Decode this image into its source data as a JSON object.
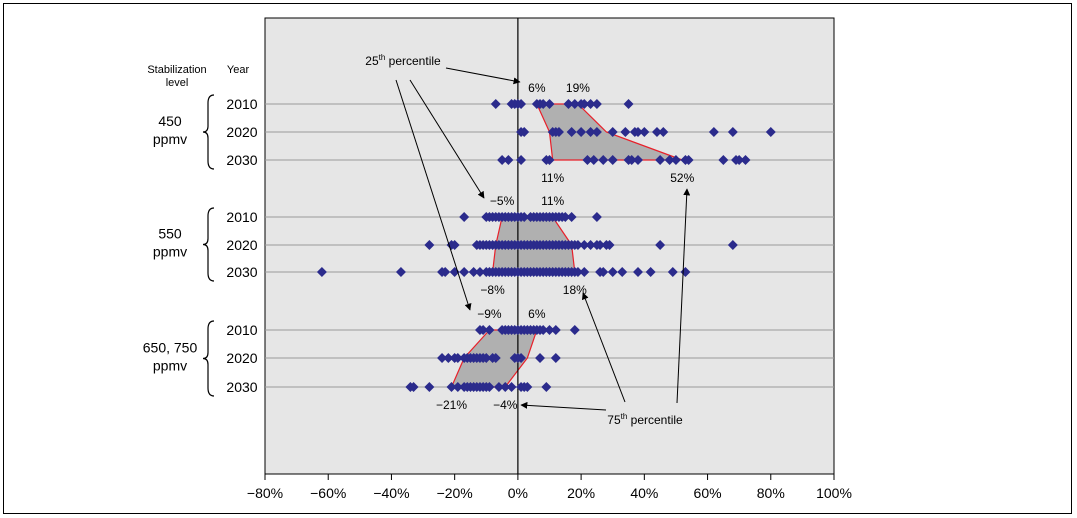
{
  "chart_data": {
    "type": "scatter",
    "title": "",
    "xlabel": "",
    "ylabel": "",
    "xlim": [
      -80,
      100
    ],
    "x_ticks": [
      "−80%",
      "−60%",
      "−40%",
      "−20%",
      "0%",
      "20%",
      "40%",
      "60%",
      "80%",
      "100%"
    ],
    "x_tick_values": [
      -80,
      -60,
      -40,
      -20,
      0,
      20,
      40,
      60,
      80,
      100
    ],
    "grid": true,
    "header_stabilization": "Stabilization level",
    "header_year": "Year",
    "groups": [
      {
        "label_line1": "450",
        "label_line2": "ppmv",
        "rows": [
          {
            "year": "2010",
            "points": [
              -7,
              -2,
              -1,
              0,
              1,
              6,
              7,
              8,
              10,
              16,
              18,
              20,
              21,
              23,
              25,
              35
            ],
            "p25": 6,
            "p75": 19
          },
          {
            "year": "2020",
            "points": [
              1,
              2,
              11,
              12,
              13,
              17,
              20,
              23,
              25,
              30,
              34,
              37,
              38,
              40,
              44,
              46,
              62,
              68,
              80
            ],
            "p25": 10,
            "p75": 28
          },
          {
            "year": "2030",
            "points": [
              -5,
              -3,
              1,
              9,
              10,
              22,
              24,
              27,
              30,
              35,
              36,
              38,
              45,
              48,
              50,
              53,
              54,
              65,
              69,
              70,
              72
            ],
            "p25": 11,
            "p75": 52
          }
        ]
      },
      {
        "label_line1": "550",
        "label_line2": "ppmv",
        "rows": [
          {
            "year": "2010",
            "points": [
              -17,
              -10,
              -9,
              -8,
              -7,
              -6,
              -5,
              -4,
              -3,
              -2,
              -1,
              0,
              1,
              2,
              4,
              5,
              6,
              7,
              8,
              9,
              10,
              11,
              12,
              13,
              14,
              15,
              17,
              25
            ],
            "p25": -5,
            "p75": 11
          },
          {
            "year": "2020",
            "points": [
              -28,
              -21,
              -20,
              -13,
              -12,
              -11,
              -10,
              -9,
              -8,
              -7,
              -6,
              -5,
              -4,
              -3,
              -2,
              -1,
              0,
              1,
              2,
              3,
              4,
              5,
              6,
              7,
              8,
              9,
              10,
              11,
              12,
              13,
              14,
              15,
              16,
              17,
              18,
              19,
              21,
              23,
              25,
              26,
              28,
              29,
              45,
              68
            ],
            "p25": -7,
            "p75": 17
          },
          {
            "year": "2030",
            "points": [
              -62,
              -37,
              -24,
              -23,
              -20,
              -17,
              -14,
              -12,
              -10,
              -9,
              -8,
              -7,
              -6,
              -5,
              -4,
              -3,
              -2,
              -1,
              0,
              1,
              2,
              3,
              4,
              5,
              6,
              7,
              8,
              9,
              10,
              11,
              12,
              13,
              14,
              15,
              16,
              17,
              18,
              19,
              21,
              26,
              27,
              30,
              33,
              38,
              42,
              49,
              53
            ],
            "p25": -8,
            "p75": 18
          }
        ]
      },
      {
        "label_line1": "650, 750",
        "label_line2": "ppmv",
        "rows": [
          {
            "year": "2010",
            "points": [
              -12,
              -11,
              -9,
              -5,
              -4,
              -3,
              -2,
              -1,
              0,
              1,
              2,
              3,
              4,
              5,
              6,
              7,
              8,
              10,
              12,
              18
            ],
            "p25": -9,
            "p75": 6
          },
          {
            "year": "2020",
            "points": [
              -24,
              -22,
              -20,
              -19,
              -17,
              -16,
              -15,
              -14,
              -13,
              -12,
              -11,
              -10,
              -8,
              -7,
              -1,
              0,
              1,
              7,
              12
            ],
            "p25": -17,
            "p75": 3
          },
          {
            "year": "2030",
            "points": [
              -34,
              -33,
              -28,
              -21,
              -19,
              -17,
              -16,
              -15,
              -14,
              -13,
              -12,
              -11,
              -10,
              -9,
              -6,
              -4,
              -2,
              1,
              2,
              3,
              9
            ],
            "p25": -21,
            "p75": -4
          }
        ]
      }
    ],
    "annotations": {
      "p25_label_pre": "25",
      "p25_label_sup": "th",
      "p25_label_post": " percentile",
      "p75_label_pre": "75",
      "p75_label_sup": "th",
      "p75_label_post": " percentile",
      "value_labels": [
        {
          "text": "6%",
          "group": 0,
          "row": 0,
          "pos": "above",
          "x": 6
        },
        {
          "text": "19%",
          "group": 0,
          "row": 0,
          "pos": "above",
          "x": 19
        },
        {
          "text": "11%",
          "group": 0,
          "row": 2,
          "pos": "below",
          "x": 11
        },
        {
          "text": "52%",
          "group": 0,
          "row": 2,
          "pos": "below",
          "x": 52
        },
        {
          "text": "−5%",
          "group": 1,
          "row": 0,
          "pos": "above",
          "x": -5
        },
        {
          "text": "11%",
          "group": 1,
          "row": 0,
          "pos": "above",
          "x": 11
        },
        {
          "text": "−8%",
          "group": 1,
          "row": 2,
          "pos": "below",
          "x": -8
        },
        {
          "text": "18%",
          "group": 1,
          "row": 2,
          "pos": "below",
          "x": 18
        },
        {
          "text": "−9%",
          "group": 2,
          "row": 0,
          "pos": "above",
          "x": -9
        },
        {
          "text": "6%",
          "group": 2,
          "row": 0,
          "pos": "above",
          "x": 6
        },
        {
          "text": "−21%",
          "group": 2,
          "row": 2,
          "pos": "below",
          "x": -21
        },
        {
          "text": "−4%",
          "group": 2,
          "row": 2,
          "pos": "below",
          "x": -4
        }
      ]
    },
    "colors": {
      "plot_background": "#e6e6e6",
      "marker": "#2b2b8c",
      "band_fill": "#b0b0b0",
      "band_edge": "#e8202a",
      "gridline": "#9a9a9a"
    }
  }
}
